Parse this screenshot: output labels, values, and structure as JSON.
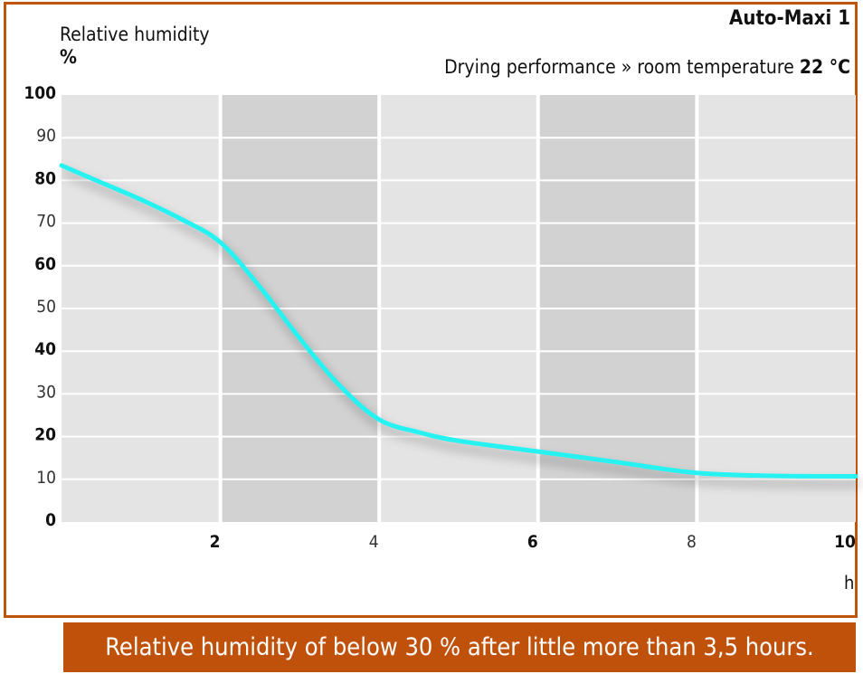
{
  "product": "Auto-Maxi 1",
  "subtitle": {
    "prefix": "Drying performance » room temperature",
    "temperature": "22 °C"
  },
  "caption": "Relative humidity of below 30 % after little more than 3,5 hours.",
  "colors": {
    "frame": "#c0550c",
    "caption_bg": "#c0510b",
    "band_light": "#e4e4e4",
    "band_dark": "#d2d2d2",
    "line": "#26f2f2"
  },
  "chart_data": {
    "type": "line",
    "title": "Auto-Maxi 1",
    "subtitle": "Drying performance » room temperature 22 °C",
    "ylabel": "Relative humidity",
    "yunit": "%",
    "xunit": "h",
    "xlim": [
      0,
      10
    ],
    "ylim": [
      0,
      100
    ],
    "xticks": [
      {
        "value": 2,
        "label": "2",
        "bold": true
      },
      {
        "value": 4,
        "label": "4",
        "bold": false
      },
      {
        "value": 6,
        "label": "6",
        "bold": true
      },
      {
        "value": 8,
        "label": "8",
        "bold": false
      },
      {
        "value": 10,
        "label": "10",
        "bold": true
      }
    ],
    "yticks": [
      {
        "value": 0,
        "label": "0",
        "bold": true
      },
      {
        "value": 10,
        "label": "10",
        "bold": false
      },
      {
        "value": 20,
        "label": "20",
        "bold": true
      },
      {
        "value": 30,
        "label": "30",
        "bold": false
      },
      {
        "value": 40,
        "label": "40",
        "bold": true
      },
      {
        "value": 50,
        "label": "50",
        "bold": false
      },
      {
        "value": 60,
        "label": "60",
        "bold": true
      },
      {
        "value": 70,
        "label": "70",
        "bold": false
      },
      {
        "value": 80,
        "label": "80",
        "bold": true
      },
      {
        "value": 90,
        "label": "90",
        "bold": false
      },
      {
        "value": 100,
        "label": "100",
        "bold": true
      }
    ],
    "grid": true,
    "series": [
      {
        "points": [
          [
            0,
            83.5
          ],
          [
            0.5,
            79.5
          ],
          [
            1,
            75.5
          ],
          [
            1.5,
            71
          ],
          [
            2,
            65.5
          ],
          [
            2.5,
            55
          ],
          [
            3,
            43
          ],
          [
            3.5,
            32
          ],
          [
            4,
            24
          ],
          [
            4.5,
            21
          ],
          [
            5,
            19
          ],
          [
            6,
            16.5
          ],
          [
            7,
            14
          ],
          [
            8,
            11.5
          ],
          [
            9,
            10.8
          ],
          [
            10,
            10.7
          ]
        ]
      }
    ]
  }
}
